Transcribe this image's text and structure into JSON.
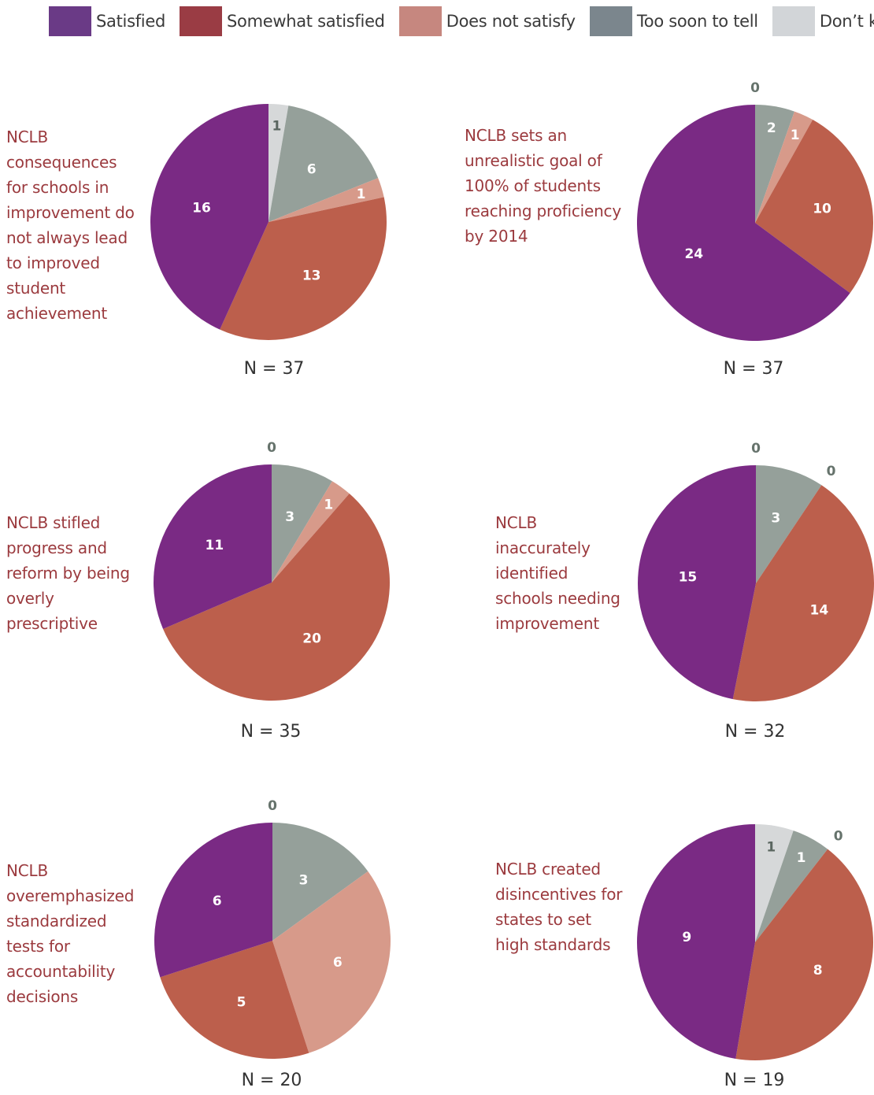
{
  "legend": [
    {
      "label": "Satisfied",
      "color": "#6a3a86"
    },
    {
      "label": "Somewhat satisfied",
      "color": "#9a3c44"
    },
    {
      "label": "Does not satisfy",
      "color": "#c6877f"
    },
    {
      "label": "Too soon to tell",
      "color": "#7b868d"
    },
    {
      "label": "Don’t know",
      "color": "#d2d5d8"
    }
  ],
  "slice_colors": [
    "#7a2a84",
    "#bc5f4c",
    "#d79a8a",
    "#95a09a",
    "#d6d8d9"
  ],
  "chart_data": [
    {
      "type": "pie",
      "title": "NCLB consequences for schools in improvement do not always lead to improved student achievement",
      "categories": [
        "Satisfied",
        "Somewhat satisfied",
        "Does not satisfy",
        "Too soon to tell",
        "Don’t know"
      ],
      "values": [
        16,
        13,
        1,
        6,
        1
      ],
      "n_label": "N = 37"
    },
    {
      "type": "pie",
      "title": "NCLB sets an unrealistic goal of 100% of students reaching proficiency by 2014",
      "categories": [
        "Satisfied",
        "Somewhat satisfied",
        "Does not satisfy",
        "Too soon to tell",
        "Don’t know"
      ],
      "values": [
        24,
        10,
        1,
        2,
        0
      ],
      "n_label": "N = 37"
    },
    {
      "type": "pie",
      "title": "NCLB stifled progress and reform by being overly prescriptive",
      "categories": [
        "Satisfied",
        "Somewhat satisfied",
        "Does not satisfy",
        "Too soon to tell",
        "Don’t know"
      ],
      "values": [
        11,
        20,
        1,
        3,
        0
      ],
      "n_label": "N = 35"
    },
    {
      "type": "pie",
      "title": "NCLB inaccurately identified schools needing improvement",
      "categories": [
        "Satisfied",
        "Somewhat satisfied",
        "Does not satisfy",
        "Too soon to tell",
        "Don’t know"
      ],
      "values": [
        15,
        14,
        0,
        3,
        0
      ],
      "n_label": "N = 32"
    },
    {
      "type": "pie",
      "title": "NCLB overemphasized standardized tests for accountability decisions",
      "categories": [
        "Satisfied",
        "Somewhat satisfied",
        "Does not satisfy",
        "Too soon to tell",
        "Don’t know"
      ],
      "values": [
        6,
        5,
        6,
        3,
        0
      ],
      "n_label": "N = 20"
    },
    {
      "type": "pie",
      "title": "NCLB created disincentives for states to set high standards",
      "categories": [
        "Satisfied",
        "Somewhat satisfied",
        "Does not satisfy",
        "Too soon to tell",
        "Don’t know"
      ],
      "values": [
        9,
        8,
        0,
        1,
        1
      ],
      "n_label": "N = 19"
    }
  ]
}
